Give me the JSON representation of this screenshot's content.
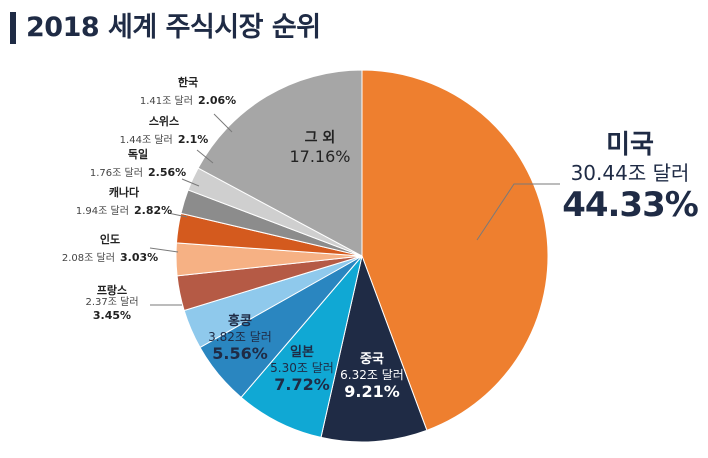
{
  "title": "2018 세계 주식시장 순위",
  "colors": {
    "title": "#1f2b45"
  },
  "chart_data": {
    "type": "pie",
    "title": "2018 세계 주식시장 순위",
    "slices": [
      {
        "label": "미국",
        "amount": "30.44조 달러",
        "value": 44.33,
        "percent": "44.33%",
        "color": "#ee7f2f"
      },
      {
        "label": "중국",
        "amount": "6.32조 달러",
        "value": 9.21,
        "percent": "9.21%",
        "color": "#1f2b45"
      },
      {
        "label": "일본",
        "amount": "5.30조 달러",
        "value": 7.72,
        "percent": "7.72%",
        "color": "#10a8d4"
      },
      {
        "label": "홍콩",
        "amount": "3.82조 달러",
        "value": 5.56,
        "percent": "5.56%",
        "color": "#2a86c0"
      },
      {
        "label": "프랑스",
        "amount": "2.37조 달러",
        "value": 3.45,
        "percent": "3.45%",
        "color": "#8fc9ec"
      },
      {
        "label": "인도",
        "amount": "2.08조 달러",
        "value": 3.03,
        "percent": "3.03%",
        "color": "#b55a45"
      },
      {
        "label": "캐나다",
        "amount": "1.94조 달러",
        "value": 2.82,
        "percent": "2.82%",
        "color": "#f6b184"
      },
      {
        "label": "독일",
        "amount": "1.76조 달러",
        "value": 2.56,
        "percent": "2.56%",
        "color": "#d45a1e"
      },
      {
        "label": "스위스",
        "amount": "1.44조 달러",
        "value": 2.1,
        "percent": "2.1%",
        "color": "#8c8c8c"
      },
      {
        "label": "한국",
        "amount": "1.41조 달러",
        "value": 2.06,
        "percent": "2.06%",
        "color": "#cfcfcf"
      },
      {
        "label": "그 외",
        "amount": "",
        "value": 17.16,
        "percent": "17.16%",
        "color": "#a6a6a6"
      }
    ]
  }
}
